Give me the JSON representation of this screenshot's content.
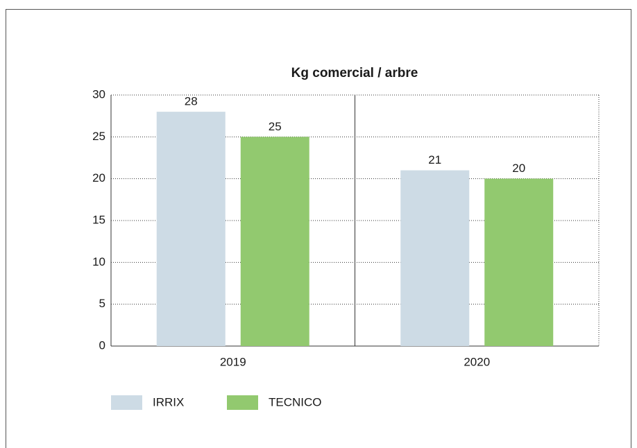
{
  "chart_data": {
    "type": "bar",
    "title": "Kg comercial / arbre",
    "categories": [
      "2019",
      "2020"
    ],
    "series": [
      {
        "name": "IRRIX",
        "color": "#cddbe5",
        "values": [
          28,
          21
        ]
      },
      {
        "name": "TECNICO",
        "color": "#92c96f",
        "values": [
          25,
          20
        ]
      }
    ],
    "ylim": [
      0,
      30
    ],
    "yticks": [
      0,
      5,
      10,
      15,
      20,
      25,
      30
    ],
    "grid": true,
    "legend": "bottom"
  }
}
